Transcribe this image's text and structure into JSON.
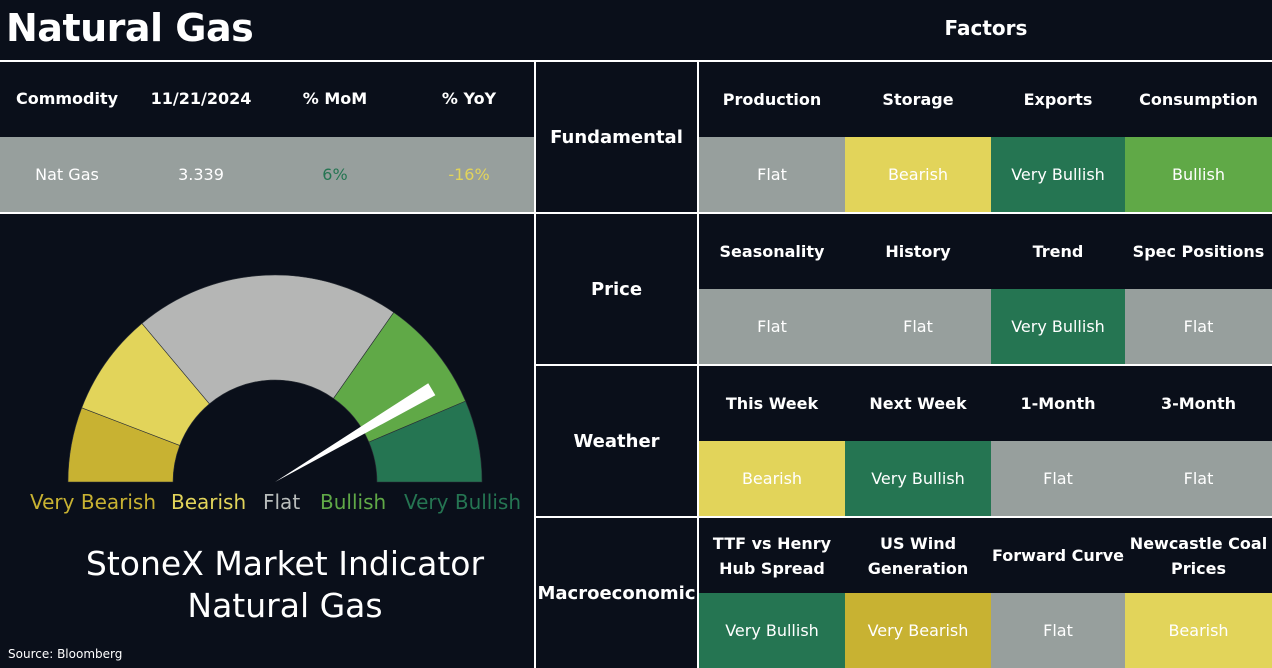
{
  "title": "Natural Gas",
  "factors_title": "Factors",
  "commodity_table": {
    "headers": [
      "Commodity",
      "11/21/2024",
      "% MoM",
      "% YoY"
    ],
    "row": {
      "commodity": "Nat Gas",
      "price": "3.339",
      "mom": "6%",
      "yoy": "-16%"
    }
  },
  "gauge": {
    "legend": [
      "Very Bearish",
      "Bearish",
      "Flat",
      "Bullish",
      "Very Bullish"
    ],
    "needle_reading_fraction": 0.83
  },
  "indicator_title": [
    "StoneX Market Indicator",
    "Natural Gas"
  ],
  "source": "Source: Bloomberg",
  "colors": {
    "very_bearish": "#c8b232",
    "bearish": "#e2d45a",
    "flat": "#979f9d",
    "bullish": "#60a947",
    "very_bullish": "#257552",
    "background": "#0a0f1a"
  },
  "factors": [
    {
      "category": "Fundamental",
      "items": [
        {
          "name": "Production",
          "value": "Flat"
        },
        {
          "name": "Storage",
          "value": "Bearish"
        },
        {
          "name": "Exports",
          "value": "Very Bullish"
        },
        {
          "name": "Consumption",
          "value": "Bullish"
        }
      ]
    },
    {
      "category": "Price",
      "items": [
        {
          "name": "Seasonality",
          "value": "Flat"
        },
        {
          "name": "History",
          "value": "Flat"
        },
        {
          "name": "Trend",
          "value": "Very Bullish"
        },
        {
          "name": "Spec Positions",
          "value": "Flat"
        }
      ]
    },
    {
      "category": "Weather",
      "items": [
        {
          "name": "This Week",
          "value": "Bearish"
        },
        {
          "name": "Next Week",
          "value": "Very Bullish"
        },
        {
          "name": "1-Month",
          "value": "Flat"
        },
        {
          "name": "3-Month",
          "value": "Flat"
        }
      ]
    },
    {
      "category": "Macroeconomic",
      "items": [
        {
          "name": "TTF vs Henry Hub Spread",
          "value": "Very Bullish"
        },
        {
          "name": "US Wind Generation",
          "value": "Very Bearish"
        },
        {
          "name": "Forward Curve",
          "value": "Flat"
        },
        {
          "name": "Newcastle Coal Prices",
          "value": "Bearish"
        }
      ]
    }
  ]
}
